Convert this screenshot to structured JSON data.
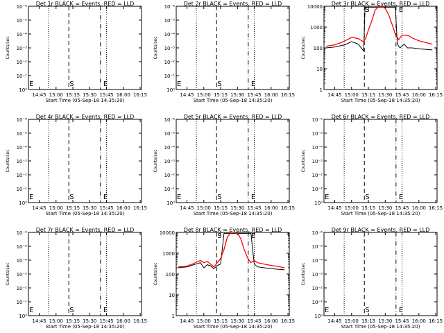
{
  "chart_data": [
    {
      "type": "line",
      "title": "Det 1r BLACK = Events, RED = LLD",
      "xlabel": "Start Time (05-Sep-18 14:35:20)",
      "ylabel": "Counts/sec",
      "ytick_labels": [
        "10⁻⁶",
        "10⁻⁵",
        "10⁻⁴",
        "10⁻³",
        "10⁻²",
        "10⁻¹",
        "10⁰"
      ],
      "empty": true
    },
    {
      "type": "line",
      "title": "Det 2r BLACK = Events, RED = LLD",
      "xlabel": "Start Time (05-Sep-18 14:35:20)",
      "ylabel": "Counts/sec",
      "ytick_labels": [
        "10⁻⁶",
        "10⁻⁵",
        "10⁻⁴",
        "10⁻³",
        "10⁻²",
        "10⁻¹",
        "10⁰"
      ],
      "empty": true
    },
    {
      "type": "line",
      "title": "Det 3r BLACK = Events, RED = LLD",
      "xlabel": "Start Time (05-Sep-18 14:35:20)",
      "ylabel": "Counts/sec",
      "ytick_labels": [
        "10000",
        "1000",
        "100",
        "10",
        "1"
      ],
      "empty": false,
      "series": [
        {
          "color": "#000000",
          "x": [
            14.62,
            14.75,
            14.9,
            15.0,
            15.1,
            15.18,
            15.2,
            15.3,
            15.35,
            15.4,
            15.45,
            15.5,
            15.55,
            15.62,
            15.65,
            15.68,
            15.72,
            15.78,
            15.83,
            15.9,
            16.0,
            16.1,
            16.2
          ],
          "y": [
            100,
            110,
            140,
            200,
            150,
            70,
            9000,
            9000,
            9000,
            9000,
            9000,
            9000,
            9000,
            9000,
            9000,
            150,
            100,
            150,
            100,
            100,
            90,
            85,
            80
          ],
          "gaps": [
            [
              15.18,
              15.25
            ],
            [
              15.62,
              15.7
            ]
          ]
        },
        {
          "color": "#ff0000",
          "x": [
            14.62,
            14.75,
            14.85,
            14.95,
            15.0,
            15.05,
            15.1,
            15.15,
            15.18,
            15.21,
            15.25,
            15.3,
            15.35,
            15.4,
            15.45,
            15.5,
            15.55,
            15.6,
            15.65,
            15.7,
            15.75,
            15.8,
            15.85,
            15.9,
            16.0,
            16.1,
            16.2
          ],
          "y": [
            120,
            140,
            180,
            260,
            320,
            300,
            280,
            220,
            200,
            300,
            700,
            2000,
            6500,
            9500,
            9800,
            8000,
            4000,
            1400,
            450,
            250,
            400,
            400,
            380,
            300,
            220,
            180,
            150
          ]
        }
      ]
    },
    {
      "type": "line",
      "title": "Det 4r BLACK = Events, RED = LLD",
      "xlabel": "Start Time (05-Sep-18 14:35:20)",
      "ylabel": "Counts/sec",
      "ytick_labels": [
        "10⁻⁶",
        "10⁻⁵",
        "10⁻⁴",
        "10⁻³",
        "10⁻²",
        "10⁻¹",
        "10⁰"
      ],
      "empty": true
    },
    {
      "type": "line",
      "title": "Det 5r BLACK = Events, RED = LLD",
      "xlabel": "Start Time (05-Sep-18 14:35:20)",
      "ylabel": "Counts/sec",
      "ytick_labels": [
        "10⁻⁶",
        "10⁻⁵",
        "10⁻⁴",
        "10⁻³",
        "10⁻²",
        "10⁻¹",
        "10⁰"
      ],
      "empty": true
    },
    {
      "type": "line",
      "title": "Det 6r BLACK = Events, RED = LLD",
      "xlabel": "Start Time (05-Sep-18 14:35:20)",
      "ylabel": "Counts/sec",
      "ytick_labels": [
        "10⁻⁶",
        "10⁻⁵",
        "10⁻⁴",
        "10⁻³",
        "10⁻²",
        "10⁻¹",
        "10⁰"
      ],
      "empty": true
    },
    {
      "type": "line",
      "title": "Det 7r BLACK = Events, RED = LLD",
      "xlabel": "Start Time (05-Sep-18 14:35:20)",
      "ylabel": "Counts/sec",
      "ytick_labels": [
        "10⁻⁶",
        "10⁻⁵",
        "10⁻⁴",
        "10⁻³",
        "10⁻²",
        "10⁻¹",
        "10⁰"
      ],
      "empty": true
    },
    {
      "type": "line",
      "title": "Det 8r BLACK = Events, RED = LLD",
      "xlabel": "Start Time (05-Sep-18 14:35:20)",
      "ylabel": "Counts/sec",
      "ytick_labels": [
        "10000",
        "1000",
        "100",
        "10",
        "1"
      ],
      "empty": false,
      "series": [
        {
          "color": "#000000",
          "x": [
            14.62,
            14.75,
            14.85,
            14.95,
            15.0,
            15.05,
            15.1,
            15.15,
            15.2,
            15.25,
            15.3,
            15.35,
            15.4,
            15.45,
            15.5,
            15.55,
            15.6,
            15.65,
            15.7,
            15.75,
            15.8,
            15.9,
            16.0,
            16.1,
            16.2
          ],
          "y": [
            200,
            220,
            280,
            350,
            200,
            280,
            250,
            180,
            260,
            300,
            9000,
            9000,
            9000,
            9000,
            9000,
            9000,
            9000,
            9000,
            9000,
            300,
            220,
            200,
            180,
            170,
            160
          ]
        },
        {
          "color": "#ff0000",
          "x": [
            14.62,
            14.75,
            14.85,
            14.95,
            15.0,
            15.05,
            15.1,
            15.15,
            15.2,
            15.25,
            15.3,
            15.35,
            15.4,
            15.45,
            15.5,
            15.55,
            15.6,
            15.65,
            15.7,
            15.75,
            15.8,
            15.9,
            16.0,
            16.1,
            16.2
          ],
          "y": [
            220,
            240,
            320,
            450,
            350,
            400,
            300,
            220,
            350,
            550,
            1500,
            6000,
            10000,
            10000,
            9000,
            5000,
            1500,
            600,
            350,
            450,
            350,
            300,
            260,
            230,
            200
          ]
        }
      ]
    },
    {
      "type": "line",
      "title": "Det 9r BLACK = Events, RED = LLD",
      "xlabel": "Start Time (05-Sep-18 14:35:20)",
      "ylabel": "Counts/sec",
      "ytick_labels": [
        "10⁻⁶",
        "10⁻⁵",
        "10⁻⁴",
        "10⁻³",
        "10⁻²",
        "10⁻¹",
        "10⁰"
      ],
      "empty": true
    }
  ],
  "xtick_labels": [
    "14:45",
    "15:00",
    "15:15",
    "15:30",
    "15:45",
    "16:00",
    "16:15"
  ],
  "markers": {
    "s_label": "S",
    "e_label": "E"
  },
  "colors": {
    "events": "#000000",
    "lld": "#ff0000"
  }
}
